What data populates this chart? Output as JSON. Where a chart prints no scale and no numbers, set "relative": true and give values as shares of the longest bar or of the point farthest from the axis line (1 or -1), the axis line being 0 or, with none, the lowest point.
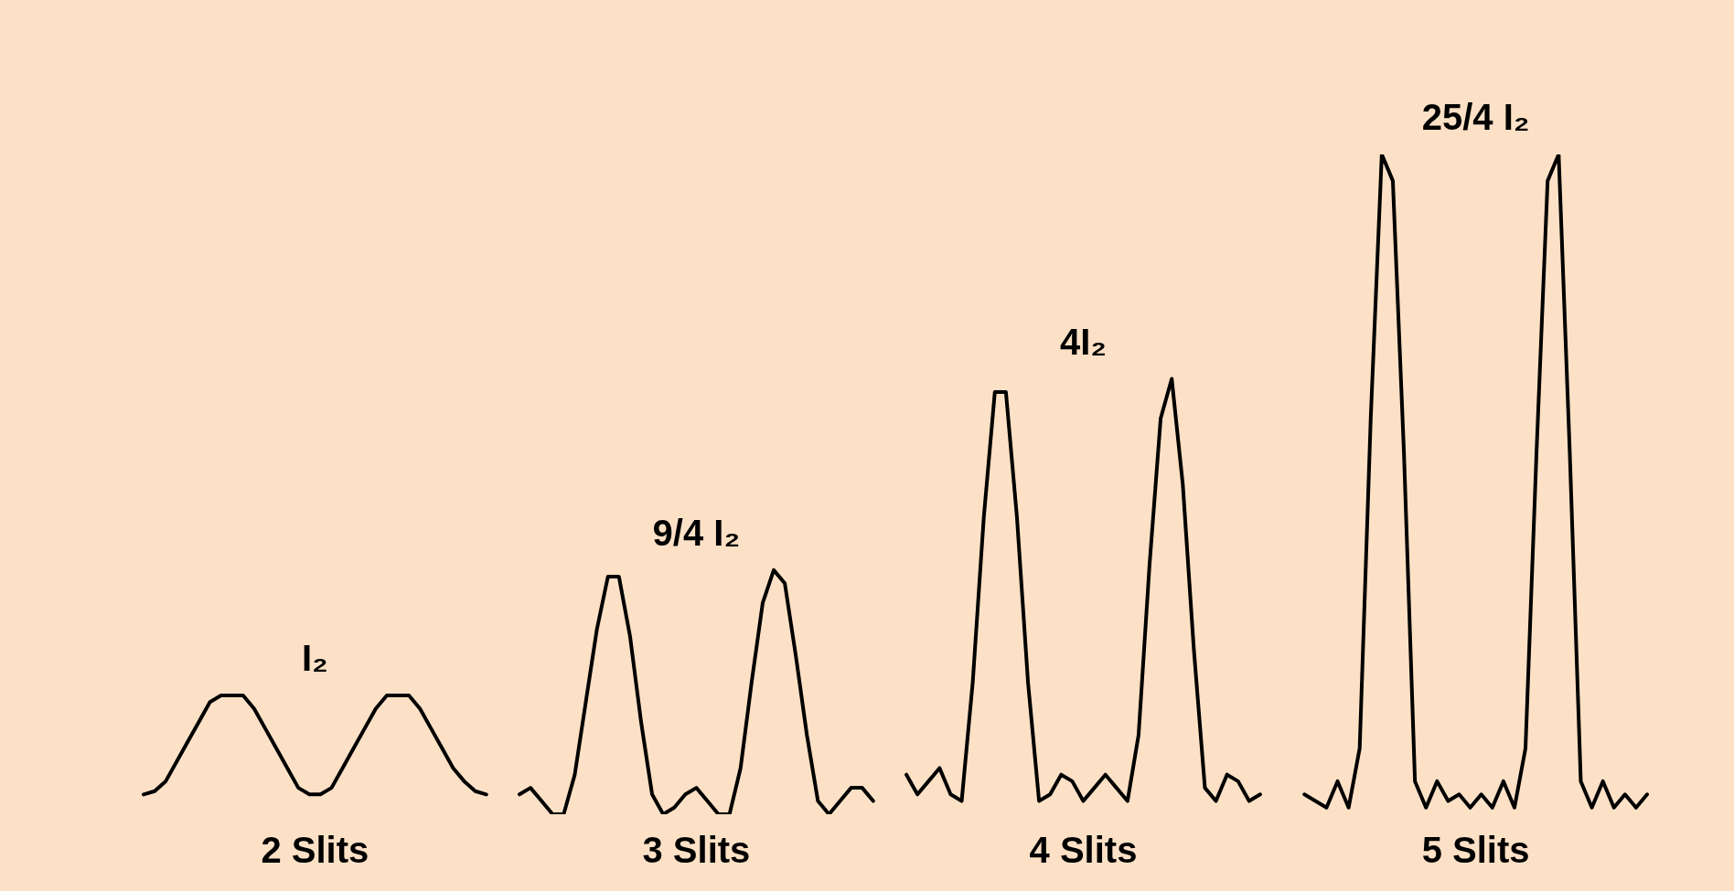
{
  "chart_data": {
    "type": "line",
    "relative": true,
    "legend": false,
    "tick_labels": false,
    "marker": "none",
    "line_style": "solid",
    "annotations": [
      "I₂",
      "9/4 I₂",
      "4I₂",
      "25/4 I₂"
    ],
    "categories": [
      null,
      null,
      null,
      null,
      null,
      null,
      null,
      null,
      null,
      null,
      null,
      null,
      null,
      null,
      null,
      null,
      null,
      null,
      null,
      null,
      null,
      null,
      null,
      null,
      null,
      null,
      null,
      null,
      null,
      null,
      null,
      null,
      null,
      null,
      null,
      null,
      null,
      null,
      null,
      null,
      null,
      null,
      null,
      null,
      null,
      null,
      null,
      null,
      null,
      null,
      null,
      null,
      null,
      null,
      null,
      null,
      null,
      null,
      null,
      null,
      null,
      null,
      null,
      null,
      null,
      null,
      null,
      null,
      null,
      null,
      null,
      null,
      null,
      null,
      null,
      null,
      null,
      null,
      null,
      null,
      null,
      null,
      null,
      null,
      null,
      null,
      null,
      null,
      null,
      null,
      null,
      null,
      null,
      null,
      null,
      null,
      null,
      null,
      null,
      null,
      null,
      null,
      null,
      null,
      null,
      null,
      null,
      null,
      null,
      null,
      null,
      null,
      null,
      null,
      null,
      null,
      null,
      null,
      null,
      null,
      null,
      null,
      null,
      null,
      null,
      null,
      null,
      null,
      null,
      null,
      null,
      null,
      null,
      null,
      null,
      null,
      null
    ],
    "series": [
      {
        "name": "2 Slits",
        "color": "#000000",
        "values": [
          0.03,
          0.035,
          0.05,
          0.08,
          0.11,
          0.14,
          0.17,
          0.18,
          0.18,
          0.18,
          0.16,
          0.13,
          0.1,
          0.07,
          0.04,
          0.03,
          0.03,
          0.04,
          0.07,
          0.1,
          0.13,
          0.16,
          0.18,
          0.18,
          0.18,
          0.16,
          0.13,
          0.1,
          0.07,
          0.05,
          0.035,
          0.03,
          null,
          null,
          null,
          null,
          null,
          null,
          null,
          null,
          null,
          null,
          null,
          null,
          null,
          null,
          null,
          null,
          null,
          null,
          null,
          null,
          null,
          null,
          null,
          null,
          null,
          null,
          null,
          null,
          null,
          null,
          null,
          null,
          null,
          null,
          null,
          null,
          null,
          null,
          null,
          null,
          null,
          null,
          null,
          null,
          null,
          null,
          null,
          null,
          null,
          null,
          null,
          null,
          null,
          null,
          null,
          null,
          null,
          null,
          null,
          null,
          null,
          null,
          null,
          null,
          null,
          null,
          null,
          null,
          null,
          null,
          null,
          null,
          null,
          null,
          null,
          null,
          null,
          null,
          null,
          null,
          null,
          null,
          null,
          null,
          null,
          null,
          null,
          null,
          null,
          null,
          null,
          null,
          null,
          null,
          null,
          null,
          null,
          null,
          null,
          null,
          null,
          null,
          null,
          null,
          null
        ]
      },
      {
        "name": "3 Slits",
        "color": "#000000",
        "values": [
          null,
          null,
          null,
          null,
          null,
          null,
          null,
          null,
          null,
          null,
          null,
          null,
          null,
          null,
          null,
          null,
          null,
          null,
          null,
          null,
          null,
          null,
          null,
          null,
          null,
          null,
          null,
          null,
          null,
          null,
          null,
          null,
          null,
          null,
          0.03,
          0.04,
          0.02,
          0,
          0,
          0.06,
          0.17,
          0.28,
          0.36,
          0.36,
          0.27,
          0.14,
          0.03,
          0,
          0.01,
          0.03,
          0.04,
          0.02,
          0,
          0,
          0.07,
          0.2,
          0.32,
          0.37,
          0.35,
          0.24,
          0.12,
          0.02,
          0,
          0.02,
          0.04,
          0.04,
          0.02,
          null,
          null,
          null,
          null,
          null,
          null,
          null,
          null,
          null,
          null,
          null,
          null,
          null,
          null,
          null,
          null,
          null,
          null,
          null,
          null,
          null,
          null,
          null,
          null,
          null,
          null,
          null,
          null,
          null,
          null,
          null,
          null,
          null,
          null,
          null,
          null,
          null,
          null,
          null,
          null,
          null,
          null,
          null,
          null,
          null,
          null,
          null,
          null,
          null,
          null,
          null,
          null,
          null,
          null,
          null,
          null,
          null,
          null,
          null,
          null,
          null,
          null,
          null,
          null,
          null,
          null,
          null,
          null,
          null,
          null
        ]
      },
      {
        "name": "4 Slits",
        "color": "#000000",
        "values": [
          null,
          null,
          null,
          null,
          null,
          null,
          null,
          null,
          null,
          null,
          null,
          null,
          null,
          null,
          null,
          null,
          null,
          null,
          null,
          null,
          null,
          null,
          null,
          null,
          null,
          null,
          null,
          null,
          null,
          null,
          null,
          null,
          null,
          null,
          null,
          null,
          null,
          null,
          null,
          null,
          null,
          null,
          null,
          null,
          null,
          null,
          null,
          null,
          null,
          null,
          null,
          null,
          null,
          null,
          null,
          null,
          null,
          null,
          null,
          null,
          null,
          null,
          null,
          null,
          null,
          null,
          null,
          null,
          null,
          0.06,
          0.03,
          0.05,
          0.07,
          0.03,
          0.02,
          0.2,
          0.45,
          0.64,
          0.64,
          0.45,
          0.2,
          0.02,
          0.03,
          0.06,
          0.05,
          0.02,
          0.04,
          0.06,
          0.04,
          0.02,
          0.12,
          0.38,
          0.6,
          0.66,
          0.5,
          0.25,
          0.04,
          0.02,
          0.06,
          0.05,
          0.02,
          0.03,
          null,
          null,
          null,
          null,
          null,
          null,
          null,
          null,
          null,
          null,
          null,
          null,
          null,
          null,
          null,
          null,
          null,
          null,
          null,
          null,
          null,
          null,
          null,
          null,
          null,
          null,
          null,
          null,
          null,
          null,
          null,
          null,
          null,
          null,
          null
        ]
      },
      {
        "name": "5 Slits",
        "color": "#000000",
        "values": [
          null,
          null,
          null,
          null,
          null,
          null,
          null,
          null,
          null,
          null,
          null,
          null,
          null,
          null,
          null,
          null,
          null,
          null,
          null,
          null,
          null,
          null,
          null,
          null,
          null,
          null,
          null,
          null,
          null,
          null,
          null,
          null,
          null,
          null,
          null,
          null,
          null,
          null,
          null,
          null,
          null,
          null,
          null,
          null,
          null,
          null,
          null,
          null,
          null,
          null,
          null,
          null,
          null,
          null,
          null,
          null,
          null,
          null,
          null,
          null,
          null,
          null,
          null,
          null,
          null,
          null,
          null,
          null,
          null,
          null,
          null,
          null,
          null,
          null,
          null,
          null,
          null,
          null,
          null,
          null,
          null,
          null,
          null,
          null,
          null,
          null,
          null,
          null,
          null,
          null,
          null,
          null,
          null,
          null,
          null,
          null,
          null,
          null,
          null,
          null,
          null,
          null,
          null,
          null,
          null,
          0.03,
          0.02,
          0.01,
          0.05,
          0.01,
          0.1,
          0.6,
          1,
          0.96,
          0.55,
          0.05,
          0.01,
          0.05,
          0.02,
          0.03,
          0.01,
          0.03,
          0.01,
          0.05,
          0.01,
          0.1,
          0.55,
          0.96,
          1,
          0.55,
          0.05,
          0.01,
          0.05,
          0.01,
          0.03,
          0.01,
          0.03
        ]
      }
    ]
  }
}
